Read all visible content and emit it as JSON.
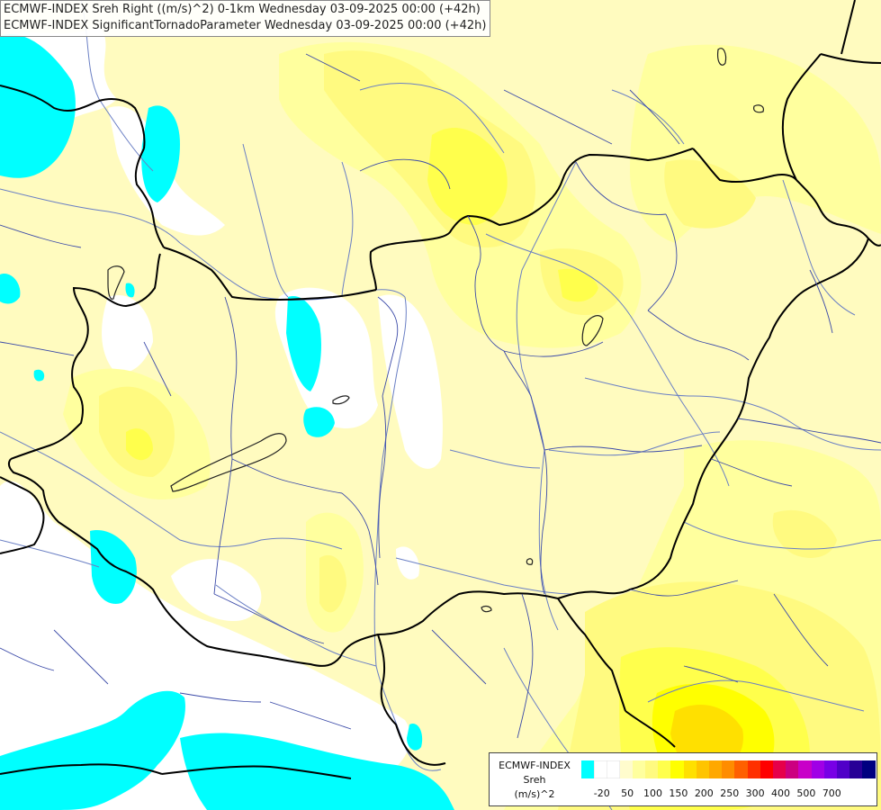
{
  "title": {
    "line1": "ECMWF-INDEX Sreh Right ((m/s)^2) 0-1km Wednesday 03-09-2025 00:00 (+42h)",
    "line2": "ECMWF-INDEX SignificantTornadoParameter Wednesday 03-09-2025 00:00 (+42h)"
  },
  "legend": {
    "model": "ECMWF-INDEX",
    "variable": "Sreh",
    "unit": "(m/s)^2",
    "colors": [
      "#00ffff",
      "#ffffff",
      "#ffffff",
      "#fffccd",
      "#ffff9e",
      "#fffa80",
      "#ffff4c",
      "#ffff00",
      "#ffe000",
      "#ffc400",
      "#ffa800",
      "#ff8c00",
      "#ff6000",
      "#ff3000",
      "#ff0000",
      "#e6004a",
      "#cc0080",
      "#c800c8",
      "#a000e6",
      "#7800e6",
      "#5000c8",
      "#280096",
      "#000080"
    ],
    "ticks": [
      "-20",
      "50",
      "100",
      "150",
      "200",
      "250",
      "300",
      "400",
      "500",
      "700"
    ]
  },
  "fill_colors": {
    "background": "#fffbbf",
    "light_yellow": "#ffff9e",
    "yellow": "#fffa80",
    "strong_yellow": "#ffff4c",
    "bright_yellow": "#ffff00",
    "orange_yellow": "#ffe000",
    "cyan": "#00ffff",
    "white": "#ffffff"
  }
}
